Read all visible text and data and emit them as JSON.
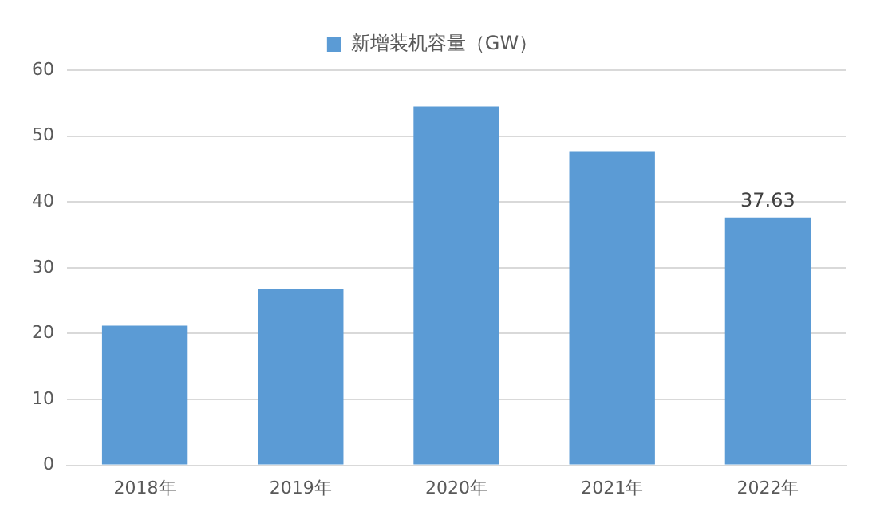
{
  "chart_data": {
    "type": "bar",
    "categories": [
      "2018年",
      "2019年",
      "2020年",
      "2021年",
      "2022年"
    ],
    "series": [
      {
        "name": "新增装机容量（GW）",
        "color": "#5b9bd5",
        "values": [
          21.2,
          26.7,
          54.5,
          47.6,
          37.63
        ],
        "value_labels": [
          null,
          null,
          null,
          null,
          "37.63"
        ]
      }
    ],
    "ylim": [
      0,
      60
    ],
    "yticks": [
      0,
      10,
      20,
      30,
      40,
      50,
      60
    ],
    "grid": "y",
    "legend": "top"
  }
}
